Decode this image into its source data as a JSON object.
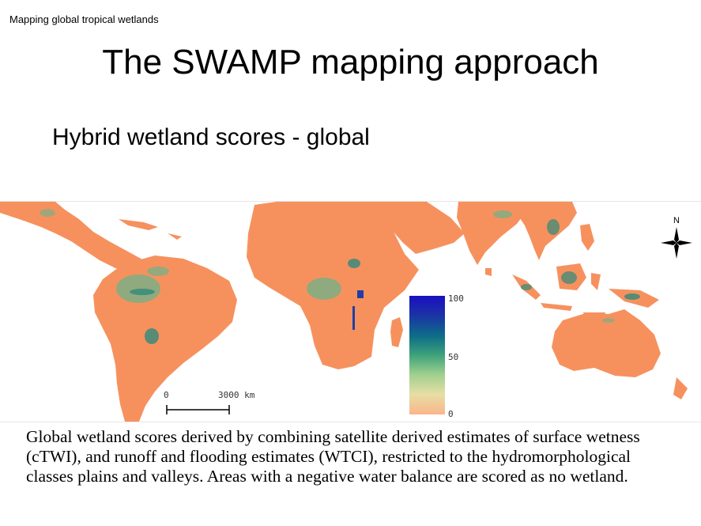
{
  "header": {
    "section_label": "Mapping global tropical wetlands"
  },
  "slide": {
    "title": "The SWAMP mapping approach",
    "subtitle": "Hybrid wetland scores - global"
  },
  "map": {
    "north_label": "N",
    "legend": {
      "max_label": "100",
      "mid_label": "50",
      "min_label": "0",
      "colors": [
        "#fbb58a",
        "#e7dea5",
        "#9ecf8e",
        "#3ea27a",
        "#0e6d88",
        "#1c2fa8",
        "#1a10c0"
      ]
    },
    "scale_bar": {
      "start_label": "0",
      "end_label": "3000 km"
    },
    "land_color": "#f6915e",
    "wetland_colors": [
      "#6cb38a",
      "#2f8a7a",
      "#1f3fa6"
    ]
  },
  "caption": {
    "text": "Global wetland scores derived by combining satellite derived estimates of surface wetness (cTWI), and runoff and flooding estimates (WTCI), restricted to the hydromorphological classes plains and valleys. Areas with a negative water balance are scored as no wetland."
  }
}
